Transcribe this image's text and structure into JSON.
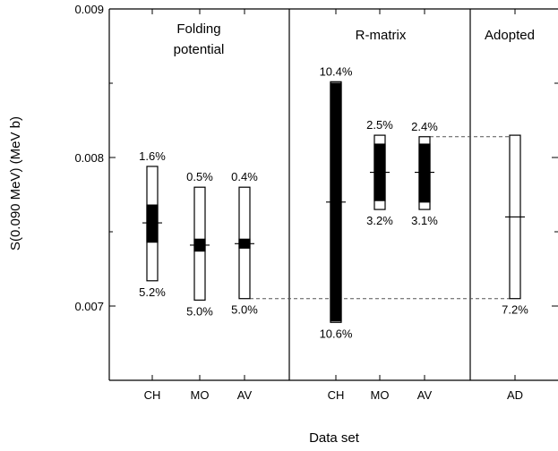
{
  "chart_data": {
    "type": "bar",
    "ylabel": "S(0.090 MeV) (MeV b)",
    "xlabel": "Data set",
    "ylim": [
      0.0065,
      0.009
    ],
    "yticks": [
      0.007,
      0.008,
      0.009
    ],
    "ytick_labels": [
      "0.007",
      "0.008",
      "0.009"
    ],
    "sections": [
      {
        "title": "Folding\npotential",
        "categories": [
          "CH",
          "MO",
          "AV"
        ]
      },
      {
        "title": "R-matrix",
        "categories": [
          "CH",
          "MO",
          "AV"
        ]
      },
      {
        "title": "Adopted",
        "categories": [
          "AD"
        ]
      }
    ],
    "series": [
      {
        "category": "CH",
        "section": 0,
        "central": 0.00756,
        "outer_high": 0.00794,
        "outer_low": 0.00717,
        "inner_high": 0.00768,
        "inner_low": 0.00743,
        "upper_label": "1.6%",
        "lower_label": "5.2%"
      },
      {
        "category": "MO",
        "section": 0,
        "central": 0.00741,
        "outer_high": 0.0078,
        "outer_low": 0.00704,
        "inner_high": 0.00745,
        "inner_low": 0.00737,
        "upper_label": "0.5%",
        "lower_label": "5.0%"
      },
      {
        "category": "AV",
        "section": 0,
        "central": 0.00742,
        "outer_high": 0.0078,
        "outer_low": 0.00705,
        "inner_high": 0.00745,
        "inner_low": 0.00739,
        "upper_label": "0.4%",
        "lower_label": "5.0%"
      },
      {
        "category": "CH",
        "section": 1,
        "central": 0.0077,
        "outer_high": 0.00851,
        "outer_low": 0.00689,
        "inner_high": 0.0085,
        "inner_low": 0.0069,
        "upper_label": "10.4%",
        "lower_label": "10.6%"
      },
      {
        "category": "MO",
        "section": 1,
        "central": 0.0079,
        "outer_high": 0.00815,
        "outer_low": 0.00765,
        "inner_high": 0.00809,
        "inner_low": 0.00771,
        "upper_label": "2.5%",
        "lower_label": "3.2%"
      },
      {
        "category": "AV",
        "section": 1,
        "central": 0.0079,
        "outer_high": 0.00814,
        "outer_low": 0.00765,
        "inner_high": 0.00809,
        "inner_low": 0.0077,
        "upper_label": "2.4%",
        "lower_label": "3.1%"
      },
      {
        "category": "AD",
        "section": 2,
        "central": 0.0076,
        "outer_high": 0.00815,
        "outer_low": 0.00705,
        "inner_high": null,
        "inner_low": null,
        "upper_label": "",
        "lower_label": "7.2%"
      }
    ],
    "reference_lines": [
      0.00814,
      0.00705
    ],
    "grid": false,
    "legend": "none"
  }
}
